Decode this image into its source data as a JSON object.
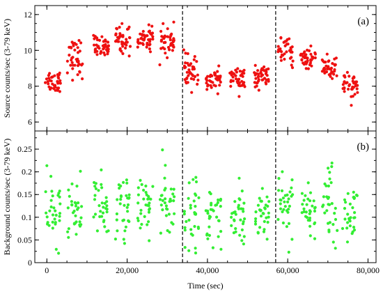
{
  "chart_data": [
    {
      "type": "scatter",
      "panel_label": "(a)",
      "ylabel": "Source counts/sec (3-79 keV)",
      "xlim": [
        -3000,
        82000
      ],
      "ylim": [
        5.5,
        12.5
      ],
      "yticks": [
        "6",
        "8",
        "10",
        "12"
      ],
      "marker_color": "#ee1111",
      "vertical_dashed_lines_x": [
        33800,
        57000
      ],
      "clusters": [
        {
          "x_center": 1500,
          "y_mean": 8.3,
          "y_spread": 0.45,
          "count": 38
        },
        {
          "x_center": 7000,
          "y_mean": 9.6,
          "y_spread": 0.7,
          "count": 40
        },
        {
          "x_center": 13500,
          "y_mean": 10.2,
          "y_spread": 0.4,
          "count": 40
        },
        {
          "x_center": 19000,
          "y_mean": 10.6,
          "y_spread": 0.55,
          "count": 40
        },
        {
          "x_center": 24500,
          "y_mean": 10.7,
          "y_spread": 0.45,
          "count": 40
        },
        {
          "x_center": 30000,
          "y_mean": 10.5,
          "y_spread": 0.5,
          "count": 40
        },
        {
          "x_center": 36000,
          "y_mean": 8.8,
          "y_spread": 0.6,
          "count": 40
        },
        {
          "x_center": 41500,
          "y_mean": 8.3,
          "y_spread": 0.4,
          "count": 38
        },
        {
          "x_center": 47500,
          "y_mean": 8.4,
          "y_spread": 0.45,
          "count": 40
        },
        {
          "x_center": 53500,
          "y_mean": 8.5,
          "y_spread": 0.4,
          "count": 40
        },
        {
          "x_center": 59500,
          "y_mean": 9.9,
          "y_spread": 0.45,
          "count": 40
        },
        {
          "x_center": 65000,
          "y_mean": 9.6,
          "y_spread": 0.45,
          "count": 40
        },
        {
          "x_center": 70500,
          "y_mean": 9.0,
          "y_spread": 0.5,
          "count": 40
        },
        {
          "x_center": 75500,
          "y_mean": 8.0,
          "y_spread": 0.5,
          "count": 38
        }
      ]
    },
    {
      "type": "scatter",
      "panel_label": "(b)",
      "ylabel": "Background counts/sec (3-79 keV)",
      "xlabel": "Time (sec)",
      "xlim": [
        -3000,
        82000
      ],
      "ylim": [
        0,
        0.29
      ],
      "yticks": [
        "0",
        "0.05",
        "0.1",
        "0.15",
        "0.2",
        "0.25"
      ],
      "xticks": [
        "0",
        "20,000",
        "40,000",
        "60,000",
        "80,000"
      ],
      "xtick_values": [
        0,
        20000,
        40000,
        60000,
        80000
      ],
      "marker_color": "#33ee33",
      "vertical_dashed_lines_x": [
        33800,
        57000
      ],
      "clusters": [
        {
          "x_center": 1500,
          "y_mean": 0.11,
          "y_spread": 0.045,
          "count": 32
        },
        {
          "x_center": 7000,
          "y_mean": 0.12,
          "y_spread": 0.045,
          "count": 32
        },
        {
          "x_center": 13500,
          "y_mean": 0.12,
          "y_spread": 0.045,
          "count": 32
        },
        {
          "x_center": 19000,
          "y_mean": 0.12,
          "y_spread": 0.05,
          "count": 32
        },
        {
          "x_center": 24500,
          "y_mean": 0.13,
          "y_spread": 0.045,
          "count": 32
        },
        {
          "x_center": 30000,
          "y_mean": 0.13,
          "y_spread": 0.05,
          "count": 32
        },
        {
          "x_center": 36000,
          "y_mean": 0.1,
          "y_spread": 0.05,
          "count": 32
        },
        {
          "x_center": 41500,
          "y_mean": 0.1,
          "y_spread": 0.045,
          "count": 32
        },
        {
          "x_center": 47500,
          "y_mean": 0.1,
          "y_spread": 0.045,
          "count": 32
        },
        {
          "x_center": 53500,
          "y_mean": 0.11,
          "y_spread": 0.045,
          "count": 32
        },
        {
          "x_center": 59500,
          "y_mean": 0.13,
          "y_spread": 0.05,
          "count": 32
        },
        {
          "x_center": 65000,
          "y_mean": 0.12,
          "y_spread": 0.045,
          "count": 32
        },
        {
          "x_center": 70500,
          "y_mean": 0.13,
          "y_spread": 0.05,
          "count": 32
        },
        {
          "x_center": 75500,
          "y_mean": 0.11,
          "y_spread": 0.045,
          "count": 32
        }
      ]
    }
  ]
}
